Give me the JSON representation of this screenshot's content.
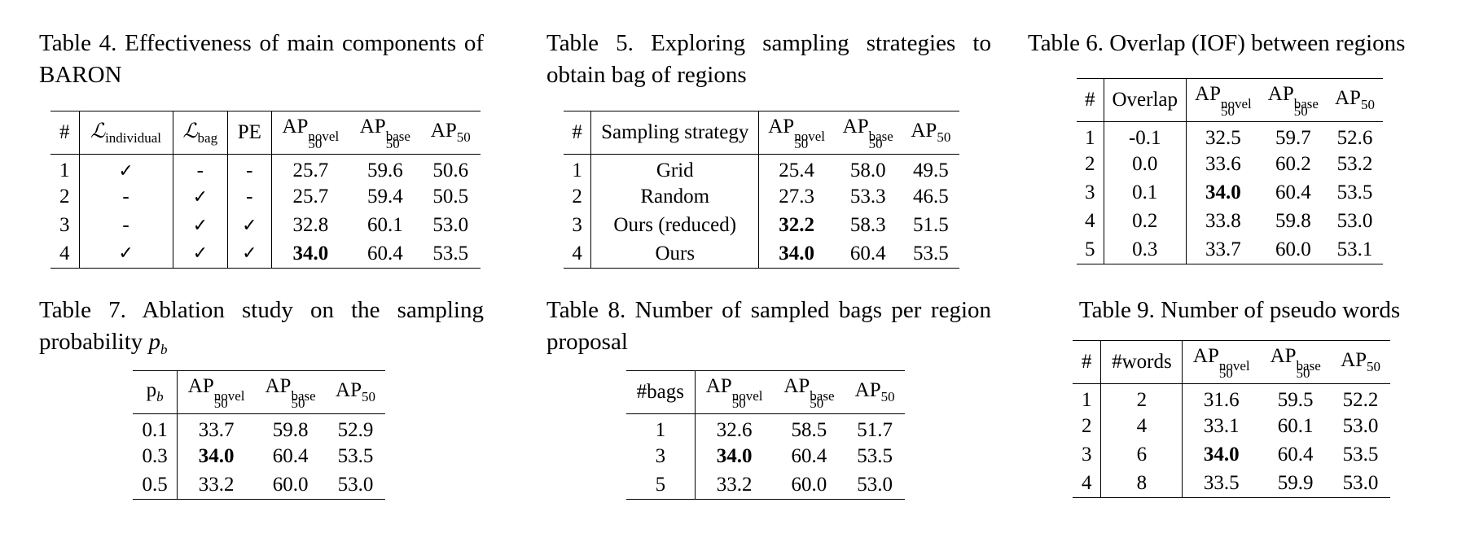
{
  "t4": {
    "caption": "Table 4. Effectiveness of main components of BARON",
    "headers": {
      "idx": "#",
      "l_ind_sym": "ℒ",
      "l_ind_sub": "individual",
      "l_bag_sym": "ℒ",
      "l_bag_sub": "bag",
      "pe": "PE",
      "ap": "AP",
      "ap_sub": "50",
      "novel": "novel",
      "base": "base"
    },
    "rows": [
      [
        "1",
        "✓",
        "-",
        "-",
        "25.7",
        "59.6",
        "50.6"
      ],
      [
        "2",
        "-",
        "✓",
        "-",
        "25.7",
        "59.4",
        "50.5"
      ],
      [
        "3",
        "-",
        "✓",
        "✓",
        "32.8",
        "60.1",
        "53.0"
      ],
      [
        "4",
        "✓",
        "✓",
        "✓",
        "34.0",
        "60.4",
        "53.5"
      ]
    ]
  },
  "t5": {
    "caption": "Table 5. Exploring sampling strategies to obtain bag of regions",
    "headers": {
      "idx": "#",
      "strategy": "Sampling strategy",
      "ap": "AP",
      "ap_sub": "50",
      "novel": "novel",
      "base": "base"
    },
    "rows": [
      [
        "1",
        "Grid",
        "25.4",
        "58.0",
        "49.5"
      ],
      [
        "2",
        "Random",
        "27.3",
        "53.3",
        "46.5"
      ],
      [
        "3",
        "Ours (reduced)",
        "32.2",
        "58.3",
        "51.5"
      ],
      [
        "4",
        "Ours",
        "34.0",
        "60.4",
        "53.5"
      ]
    ]
  },
  "t6": {
    "caption": "Table 6. Overlap (IOF) between regions",
    "headers": {
      "idx": "#",
      "overlap": "Overlap",
      "ap": "AP",
      "ap_sub": "50",
      "novel": "novel",
      "base": "base"
    },
    "rows": [
      [
        "1",
        "-0.1",
        "32.5",
        "59.7",
        "52.6"
      ],
      [
        "2",
        "0.0",
        "33.6",
        "60.2",
        "53.2"
      ],
      [
        "3",
        "0.1",
        "34.0",
        "60.4",
        "53.5"
      ],
      [
        "4",
        "0.2",
        "33.8",
        "59.8",
        "53.0"
      ],
      [
        "5",
        "0.3",
        "33.7",
        "60.0",
        "53.1"
      ]
    ]
  },
  "t7": {
    "caption_main": "Table 7. Ablation study on the sampling probability",
    "caption_sym": "p",
    "caption_sub": "b",
    "headers": {
      "pb_sym": "p",
      "pb_sub": "b",
      "ap": "AP",
      "ap_sub": "50",
      "novel": "novel",
      "base": "base"
    },
    "rows": [
      [
        "0.1",
        "33.7",
        "59.8",
        "52.9"
      ],
      [
        "0.3",
        "34.0",
        "60.4",
        "53.5"
      ],
      [
        "0.5",
        "33.2",
        "60.0",
        "53.0"
      ]
    ]
  },
  "t8": {
    "caption": "Table 8. Number of sampled bags per region proposal",
    "headers": {
      "bags": "#bags",
      "ap": "AP",
      "ap_sub": "50",
      "novel": "novel",
      "base": "base"
    },
    "rows": [
      [
        "1",
        "32.6",
        "58.5",
        "51.7"
      ],
      [
        "3",
        "34.0",
        "60.4",
        "53.5"
      ],
      [
        "5",
        "33.2",
        "60.0",
        "53.0"
      ]
    ]
  },
  "t9": {
    "caption": "Table 9. Number of pseudo words",
    "headers": {
      "idx": "#",
      "words": "#words",
      "ap": "AP",
      "ap_sub": "50",
      "novel": "novel",
      "base": "base"
    },
    "rows": [
      [
        "1",
        "2",
        "31.6",
        "59.5",
        "52.2"
      ],
      [
        "2",
        "4",
        "33.1",
        "60.1",
        "53.0"
      ],
      [
        "3",
        "6",
        "34.0",
        "60.4",
        "53.5"
      ],
      [
        "4",
        "8",
        "33.5",
        "59.9",
        "53.0"
      ]
    ]
  }
}
